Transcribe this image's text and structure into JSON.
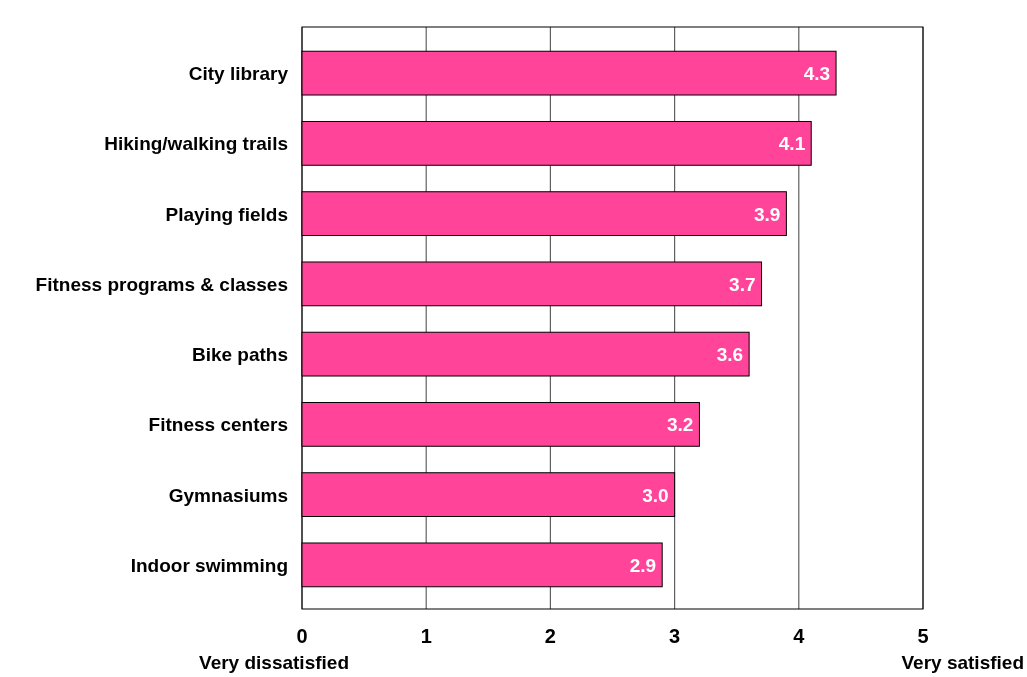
{
  "chart_data": {
    "type": "bar",
    "orientation": "horizontal",
    "categories": [
      "City library",
      "Hiking/walking trails",
      "Playing fields",
      "Fitness programs & classes",
      "Bike paths",
      "Fitness centers",
      "Gymnasiums",
      "Indoor swimming"
    ],
    "values": [
      4.3,
      4.1,
      3.9,
      3.7,
      3.6,
      3.2,
      3.0,
      2.9
    ],
    "color": "#ff4499",
    "xlim": [
      0,
      5
    ],
    "xticks": [
      0,
      1,
      2,
      3,
      4,
      5
    ],
    "grid": "x",
    "data_labels": true,
    "value_labels": [
      "4.3",
      "4.1",
      "3.9",
      "3.7",
      "3.6",
      "3.2",
      "3.0",
      "2.9"
    ],
    "annotations": [
      "Very dissatisfied",
      "Very satisfied"
    ]
  }
}
